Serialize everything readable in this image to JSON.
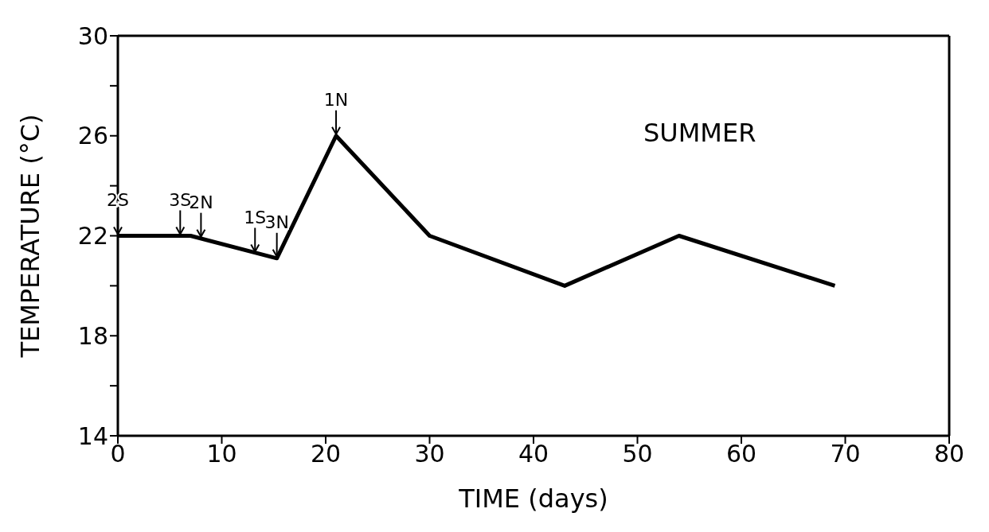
{
  "chart_data": {
    "type": "line",
    "xlabel": "TIME (days)",
    "ylabel": "TEMPERATURE (°C)",
    "x": [
      0,
      7,
      15.3,
      21,
      30,
      43,
      54,
      69
    ],
    "series": [
      {
        "color": "#000000",
        "values": [
          22,
          22,
          21.1,
          26,
          22,
          20,
          22,
          20
        ]
      }
    ],
    "xlim": [
      0,
      80
    ],
    "xticks": [
      0,
      10,
      20,
      30,
      40,
      50,
      60,
      70,
      80
    ],
    "ylim": [
      14,
      30
    ],
    "yticks": [
      14,
      {
        "value": 16,
        "label": null
      },
      18,
      {
        "value": 20,
        "label": null
      },
      22,
      {
        "value": 24,
        "label": null
      },
      26,
      {
        "value": 28,
        "label": null
      },
      30
    ],
    "marker": "none",
    "line_style": "solid",
    "annotations": [
      "SUMMER",
      {
        "text": "2S",
        "x": 0,
        "y": 22
      },
      {
        "text": "3S",
        "x": 6,
        "y": 22
      },
      {
        "text": "2N",
        "x": 8,
        "y": 21.9
      },
      {
        "text": "1S",
        "x": 13.2,
        "y": 21.3
      },
      {
        "text": "3N",
        "x": 15.3,
        "y": 21.1
      },
      {
        "text": "1N",
        "x": 21,
        "y": 26
      }
    ]
  }
}
